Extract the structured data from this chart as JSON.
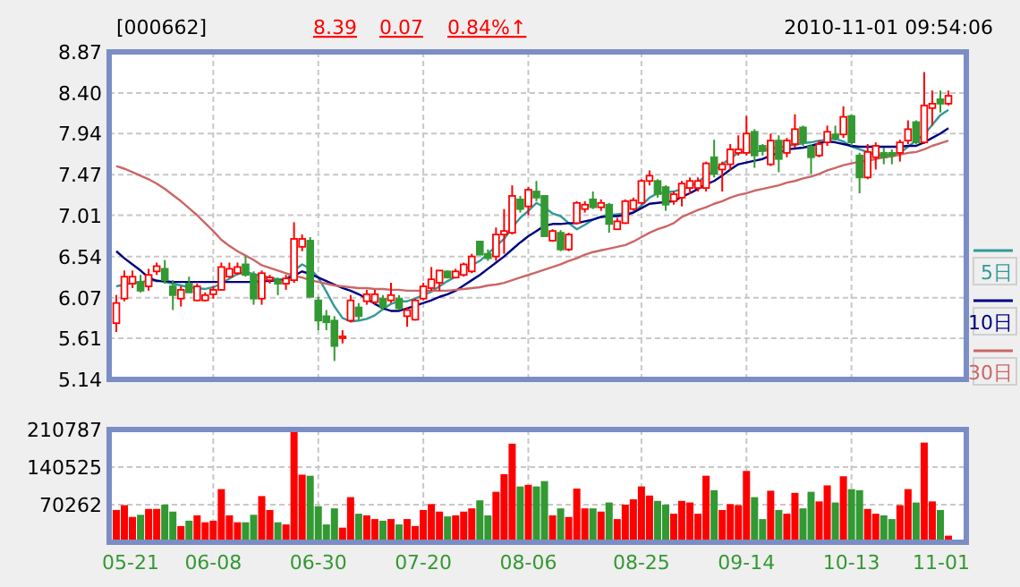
{
  "chart_data": [
    {
      "type": "candlestick",
      "title": "[000662]",
      "annotations": [
        "8.39",
        "0.07",
        "0.84%↑",
        "2010-11-01 09:54:06"
      ],
      "categories": [
        null,
        null,
        null,
        null,
        null,
        null,
        null,
        null,
        null,
        null,
        null,
        null,
        null,
        null,
        null,
        null,
        null,
        null,
        null,
        null,
        null,
        null,
        null,
        null,
        null,
        null,
        null,
        null,
        null,
        null,
        null,
        null,
        null,
        null,
        null,
        null,
        null,
        null,
        null,
        null,
        null,
        null,
        null,
        null,
        null,
        null,
        null,
        null,
        null,
        null,
        null,
        null,
        null,
        null,
        null,
        null,
        null,
        null,
        null,
        null,
        null,
        null,
        null,
        null,
        null,
        null,
        null,
        null,
        null,
        null,
        null,
        null,
        null,
        null,
        null,
        null,
        null,
        null,
        null,
        null,
        null,
        null,
        null,
        null,
        null,
        null,
        null,
        null,
        null,
        null,
        null,
        null,
        null,
        null,
        null,
        null,
        null,
        null,
        null,
        null,
        null,
        null,
        null,
        null
      ],
      "ohlc": [
        [
          5.78,
          6.1,
          5.68,
          6.01
        ],
        [
          6.06,
          6.38,
          6.03,
          6.31
        ],
        [
          6.23,
          6.38,
          6.18,
          6.31
        ],
        [
          6.25,
          6.33,
          6.13,
          6.15
        ],
        [
          6.2,
          6.4,
          6.15,
          6.33
        ],
        [
          6.37,
          6.47,
          6.33,
          6.43
        ],
        [
          6.4,
          6.5,
          6.23,
          6.27
        ],
        [
          6.2,
          6.27,
          5.93,
          6.1
        ],
        [
          6.06,
          6.2,
          5.97,
          6.16
        ],
        [
          6.23,
          6.31,
          6.13,
          6.13
        ],
        [
          6.04,
          6.23,
          6.03,
          6.2
        ],
        [
          6.04,
          6.13,
          6.03,
          6.1
        ],
        [
          6.11,
          6.2,
          6.06,
          6.16
        ],
        [
          6.16,
          6.47,
          6.15,
          6.42
        ],
        [
          6.31,
          6.47,
          6.3,
          6.4
        ],
        [
          6.35,
          6.47,
          6.33,
          6.42
        ],
        [
          6.45,
          6.54,
          6.31,
          6.33
        ],
        [
          6.33,
          6.37,
          5.99,
          6.06
        ],
        [
          6.06,
          6.38,
          5.99,
          6.35
        ],
        [
          6.27,
          6.33,
          6.23,
          6.3
        ],
        [
          6.27,
          6.3,
          6.1,
          6.23
        ],
        [
          6.23,
          6.33,
          6.16,
          6.29
        ],
        [
          6.27,
          6.93,
          6.24,
          6.74
        ],
        [
          6.65,
          6.79,
          6.6,
          6.74
        ],
        [
          6.72,
          6.76,
          6.08,
          6.08
        ],
        [
          6.04,
          6.08,
          5.7,
          5.81
        ],
        [
          5.86,
          5.93,
          5.7,
          5.79
        ],
        [
          5.81,
          5.86,
          5.35,
          5.52
        ],
        [
          5.61,
          5.7,
          5.55,
          5.63
        ],
        [
          5.81,
          6.1,
          5.79,
          6.04
        ],
        [
          5.96,
          6.01,
          5.81,
          5.86
        ],
        [
          6.03,
          6.16,
          5.99,
          6.11
        ],
        [
          6.02,
          6.16,
          6.0,
          6.11
        ],
        [
          6.06,
          6.1,
          5.93,
          5.96
        ],
        [
          6.04,
          6.24,
          6.01,
          6.1
        ],
        [
          6.06,
          6.1,
          5.93,
          5.95
        ],
        [
          5.86,
          5.96,
          5.74,
          5.93
        ],
        [
          5.82,
          6.06,
          5.81,
          6.04
        ],
        [
          6.06,
          6.24,
          6.04,
          6.2
        ],
        [
          6.18,
          6.42,
          6.15,
          6.28
        ],
        [
          6.24,
          6.38,
          6.15,
          6.38
        ],
        [
          6.37,
          6.38,
          6.29,
          6.3
        ],
        [
          6.3,
          6.4,
          6.29,
          6.37
        ],
        [
          6.33,
          6.47,
          6.31,
          6.45
        ],
        [
          6.37,
          6.57,
          6.35,
          6.54
        ],
        [
          6.71,
          6.72,
          6.56,
          6.56
        ],
        [
          6.57,
          6.62,
          6.49,
          6.52
        ],
        [
          6.54,
          6.87,
          6.49,
          6.79
        ],
        [
          6.79,
          7.08,
          6.57,
          6.83
        ],
        [
          6.81,
          7.35,
          6.79,
          7.23
        ],
        [
          7.19,
          7.23,
          7.04,
          7.08
        ],
        [
          7.11,
          7.33,
          7.01,
          7.3
        ],
        [
          7.28,
          7.4,
          7.17,
          7.21
        ],
        [
          7.23,
          7.23,
          6.77,
          6.77
        ],
        [
          6.72,
          6.85,
          6.71,
          6.83
        ],
        [
          6.81,
          6.84,
          6.6,
          6.62
        ],
        [
          6.62,
          6.81,
          6.6,
          6.79
        ],
        [
          6.92,
          7.17,
          6.91,
          7.15
        ],
        [
          7.08,
          7.17,
          7.04,
          7.13
        ],
        [
          7.19,
          7.28,
          7.08,
          7.1
        ],
        [
          7.1,
          7.19,
          7.06,
          7.15
        ],
        [
          7.13,
          7.15,
          6.81,
          6.91
        ],
        [
          6.85,
          6.98,
          6.84,
          6.94
        ],
        [
          6.92,
          7.19,
          6.91,
          7.17
        ],
        [
          7.08,
          7.21,
          7.06,
          7.18
        ],
        [
          7.15,
          7.42,
          7.13,
          7.4
        ],
        [
          7.4,
          7.52,
          7.35,
          7.46
        ],
        [
          7.4,
          7.42,
          7.21,
          7.25
        ],
        [
          7.33,
          7.35,
          7.06,
          7.13
        ],
        [
          7.17,
          7.28,
          7.13,
          7.25
        ],
        [
          7.21,
          7.4,
          7.11,
          7.37
        ],
        [
          7.32,
          7.44,
          7.25,
          7.4
        ],
        [
          7.32,
          7.44,
          7.28,
          7.4
        ],
        [
          7.32,
          7.62,
          7.28,
          7.6
        ],
        [
          7.67,
          7.87,
          7.44,
          7.48
        ],
        [
          7.53,
          7.62,
          7.28,
          7.59
        ],
        [
          7.59,
          7.82,
          7.52,
          7.76
        ],
        [
          7.72,
          7.92,
          7.69,
          7.76
        ],
        [
          7.72,
          8.14,
          7.69,
          7.94
        ],
        [
          7.96,
          7.99,
          7.55,
          7.69
        ],
        [
          7.8,
          7.82,
          7.69,
          7.74
        ],
        [
          7.59,
          7.94,
          7.57,
          7.86
        ],
        [
          7.86,
          7.92,
          7.5,
          7.65
        ],
        [
          7.72,
          7.89,
          7.67,
          7.86
        ],
        [
          7.82,
          8.16,
          7.78,
          7.99
        ],
        [
          8.01,
          8.03,
          7.8,
          7.84
        ],
        [
          7.79,
          7.82,
          7.48,
          7.67
        ],
        [
          7.69,
          7.86,
          7.67,
          7.82
        ],
        [
          7.84,
          8.03,
          7.8,
          7.96
        ],
        [
          7.93,
          8.03,
          7.86,
          7.89
        ],
        [
          7.93,
          8.25,
          7.89,
          8.13
        ],
        [
          8.14,
          8.16,
          7.8,
          7.84
        ],
        [
          7.69,
          7.72,
          7.26,
          7.44
        ],
        [
          7.44,
          7.82,
          7.42,
          7.73
        ],
        [
          7.67,
          7.84,
          7.53,
          7.8
        ],
        [
          7.72,
          7.78,
          7.59,
          7.67
        ],
        [
          7.72,
          7.76,
          7.59,
          7.69
        ],
        [
          7.72,
          7.87,
          7.62,
          7.84
        ],
        [
          7.86,
          8.09,
          7.82,
          7.99
        ],
        [
          8.07,
          8.09,
          7.82,
          7.84
        ],
        [
          7.84,
          8.64,
          7.82,
          8.26
        ],
        [
          8.23,
          8.43,
          8.03,
          8.28
        ],
        [
          8.33,
          8.43,
          8.18,
          8.28
        ],
        [
          8.28,
          8.43,
          8.26,
          8.37
        ]
      ],
      "series": [
        {
          "name": "5日",
          "type": "line",
          "color": "#339999",
          "values": [
            6.2,
            6.22,
            6.24,
            6.25,
            6.26,
            6.27,
            6.25,
            6.23,
            6.21,
            6.19,
            6.18,
            6.17,
            6.19,
            6.23,
            6.29,
            6.34,
            6.36,
            6.34,
            6.32,
            6.3,
            6.28,
            6.27,
            6.38,
            6.45,
            6.4,
            6.3,
            6.14,
            5.97,
            5.84,
            5.8,
            5.81,
            5.83,
            5.87,
            5.94,
            6.0,
            6.03,
            6.03,
            6.06,
            6.1,
            6.14,
            6.2,
            6.26,
            6.31,
            6.38,
            6.44,
            6.49,
            6.57,
            6.66,
            6.74,
            6.87,
            6.98,
            7.06,
            7.15,
            7.1,
            7.03,
            7.0,
            6.92,
            6.85,
            6.9,
            6.96,
            6.99,
            7.01,
            7.02,
            7.03,
            7.04,
            7.12,
            7.21,
            7.26,
            7.27,
            7.28,
            7.31,
            7.33,
            7.39,
            7.46,
            7.52,
            7.59,
            7.66,
            7.72,
            7.73,
            7.73,
            7.75,
            7.77,
            7.78,
            7.8,
            7.81,
            7.83,
            7.84,
            7.86,
            7.87,
            7.88,
            7.85,
            7.79,
            7.76,
            7.73,
            7.7,
            7.69,
            7.7,
            7.72,
            7.79,
            7.86,
            7.93,
            8.04,
            8.15,
            8.21
          ]
        },
        {
          "name": "10日",
          "type": "line",
          "color": "#000080",
          "values": [
            6.6,
            6.52,
            6.45,
            6.38,
            6.3,
            6.26,
            6.26,
            6.25,
            6.25,
            6.25,
            6.25,
            6.25,
            6.25,
            6.25,
            6.25,
            6.25,
            6.25,
            6.25,
            6.26,
            6.26,
            6.27,
            6.28,
            6.32,
            6.37,
            6.34,
            6.3,
            6.26,
            6.22,
            6.18,
            6.15,
            6.11,
            6.06,
            6.0,
            5.95,
            5.92,
            5.92,
            5.95,
            5.98,
            6.01,
            6.04,
            6.08,
            6.11,
            6.15,
            6.21,
            6.27,
            6.33,
            6.4,
            6.47,
            6.54,
            6.62,
            6.7,
            6.77,
            6.83,
            6.89,
            6.91,
            6.91,
            6.92,
            6.92,
            6.94,
            6.96,
            6.99,
            7.0,
            7.0,
            7.01,
            7.04,
            7.09,
            7.14,
            7.15,
            7.16,
            7.17,
            7.22,
            7.26,
            7.31,
            7.36,
            7.4,
            7.46,
            7.53,
            7.59,
            7.61,
            7.63,
            7.65,
            7.69,
            7.72,
            7.76,
            7.77,
            7.78,
            7.8,
            7.83,
            7.85,
            7.84,
            7.82,
            7.8,
            7.79,
            7.79,
            7.79,
            7.79,
            7.79,
            7.79,
            7.8,
            7.8,
            7.84,
            7.89,
            7.94,
            8.0
          ]
        },
        {
          "name": "30日",
          "type": "line",
          "color": "#cc6666",
          "values": [
            7.57,
            7.54,
            7.5,
            7.46,
            7.42,
            7.37,
            7.31,
            7.24,
            7.17,
            7.09,
            7.01,
            6.92,
            6.83,
            6.73,
            6.66,
            6.6,
            6.55,
            6.5,
            6.44,
            6.41,
            6.38,
            6.35,
            6.32,
            6.3,
            6.27,
            6.25,
            6.23,
            6.21,
            6.2,
            6.19,
            6.18,
            6.18,
            6.17,
            6.17,
            6.16,
            6.16,
            6.15,
            6.15,
            6.15,
            6.15,
            6.15,
            6.15,
            6.16,
            6.17,
            6.18,
            6.19,
            6.21,
            6.22,
            6.24,
            6.27,
            6.3,
            6.33,
            6.36,
            6.39,
            6.42,
            6.45,
            6.49,
            6.52,
            6.56,
            6.59,
            6.61,
            6.63,
            6.65,
            6.67,
            6.71,
            6.76,
            6.81,
            6.85,
            6.88,
            6.92,
            6.99,
            7.03,
            7.07,
            7.1,
            7.14,
            7.17,
            7.21,
            7.24,
            7.26,
            7.29,
            7.31,
            7.33,
            7.35,
            7.38,
            7.4,
            7.43,
            7.45,
            7.48,
            7.52,
            7.55,
            7.58,
            7.6,
            7.62,
            7.63,
            7.65,
            7.67,
            7.68,
            7.7,
            7.72,
            7.73,
            7.76,
            7.8,
            7.83,
            7.86
          ]
        }
      ],
      "ylim": [
        5.14,
        8.87
      ],
      "yticks": [
        8.87,
        {
          "value": 8.4,
          "label": "8.40"
        },
        7.94,
        7.47,
        7.01,
        6.54,
        6.07,
        5.61,
        5.14
      ],
      "grid": true,
      "tick_labels": "y",
      "legend": "right"
    },
    {
      "type": "bar",
      "categories": [
        "05-21",
        null,
        null,
        null,
        null,
        null,
        null,
        null,
        null,
        null,
        null,
        null,
        "06-08",
        null,
        null,
        null,
        null,
        null,
        null,
        null,
        null,
        null,
        null,
        null,
        null,
        "06-30",
        null,
        null,
        null,
        null,
        null,
        null,
        null,
        null,
        null,
        null,
        null,
        null,
        "07-20",
        null,
        null,
        null,
        null,
        null,
        null,
        null,
        null,
        null,
        null,
        null,
        null,
        "08-06",
        null,
        null,
        null,
        null,
        null,
        null,
        null,
        null,
        null,
        null,
        null,
        null,
        null,
        "08-25",
        null,
        null,
        null,
        null,
        null,
        null,
        null,
        null,
        null,
        null,
        null,
        null,
        "09-14",
        null,
        null,
        null,
        null,
        null,
        null,
        null,
        null,
        null,
        null,
        null,
        null,
        "10-13",
        null,
        null,
        null,
        null,
        null,
        null,
        null,
        null,
        null,
        null,
        null,
        "11-01"
      ],
      "values": [
        59000,
        68000,
        46000,
        50000,
        61000,
        61000,
        69000,
        56000,
        29000,
        39000,
        49000,
        36000,
        39000,
        98000,
        49000,
        36000,
        36000,
        50000,
        85000,
        59000,
        36000,
        32000,
        210000,
        125000,
        123000,
        66000,
        32000,
        62000,
        26000,
        83000,
        52000,
        49000,
        42000,
        39000,
        42000,
        32000,
        42000,
        29000,
        59000,
        70000,
        56000,
        47000,
        49000,
        56000,
        62000,
        77000,
        49000,
        93000,
        126000,
        183000,
        103000,
        106000,
        103000,
        113000,
        49000,
        62000,
        46000,
        99000,
        62000,
        62000,
        56000,
        73000,
        42000,
        69000,
        79000,
        103000,
        86000,
        76000,
        69000,
        52000,
        76000,
        73000,
        52000,
        123000,
        96000,
        59000,
        70000,
        68000,
        132000,
        83000,
        42000,
        95000,
        59000,
        52000,
        91000,
        62000,
        93000,
        75000,
        105000,
        73000,
        122000,
        98000,
        96000,
        61000,
        52000,
        49000,
        42000,
        68000,
        98000,
        73000,
        185000,
        75000,
        59000,
        11000
      ],
      "colors": [
        "#ff0000",
        "#ff0000",
        "#ff0000",
        "#339933",
        "#ff0000",
        "#ff0000",
        "#339933",
        "#339933",
        "#ff0000",
        "#339933",
        "#ff0000",
        "#ff0000",
        "#ff0000",
        "#ff0000",
        "#ff0000",
        "#ff0000",
        "#339933",
        "#339933",
        "#ff0000",
        "#ff0000",
        "#339933",
        "#ff0000",
        "#ff0000",
        "#ff0000",
        "#339933",
        "#339933",
        "#339933",
        "#339933",
        "#ff0000",
        "#ff0000",
        "#339933",
        "#ff0000",
        "#ff0000",
        "#339933",
        "#ff0000",
        "#339933",
        "#ff0000",
        "#ff0000",
        "#ff0000",
        "#ff0000",
        "#ff0000",
        "#339933",
        "#ff0000",
        "#ff0000",
        "#ff0000",
        "#339933",
        "#339933",
        "#ff0000",
        "#ff0000",
        "#ff0000",
        "#339933",
        "#ff0000",
        "#339933",
        "#339933",
        "#ff0000",
        "#339933",
        "#ff0000",
        "#ff0000",
        "#ff0000",
        "#339933",
        "#ff0000",
        "#339933",
        "#ff0000",
        "#ff0000",
        "#ff0000",
        "#ff0000",
        "#ff0000",
        "#339933",
        "#339933",
        "#ff0000",
        "#ff0000",
        "#ff0000",
        "#ff0000",
        "#ff0000",
        "#339933",
        "#ff0000",
        "#ff0000",
        "#ff0000",
        "#ff0000",
        "#339933",
        "#339933",
        "#ff0000",
        "#339933",
        "#ff0000",
        "#ff0000",
        "#339933",
        "#339933",
        "#ff0000",
        "#ff0000",
        "#339933",
        "#ff0000",
        "#339933",
        "#339933",
        "#ff0000",
        "#ff0000",
        "#339933",
        "#339933",
        "#ff0000",
        "#ff0000",
        "#339933",
        "#ff0000",
        "#ff0000",
        "#339933",
        "#ff0000"
      ],
      "ylim": [
        0,
        210787
      ],
      "yticks": [
        70262,
        140525,
        210787
      ],
      "grid": true
    }
  ]
}
